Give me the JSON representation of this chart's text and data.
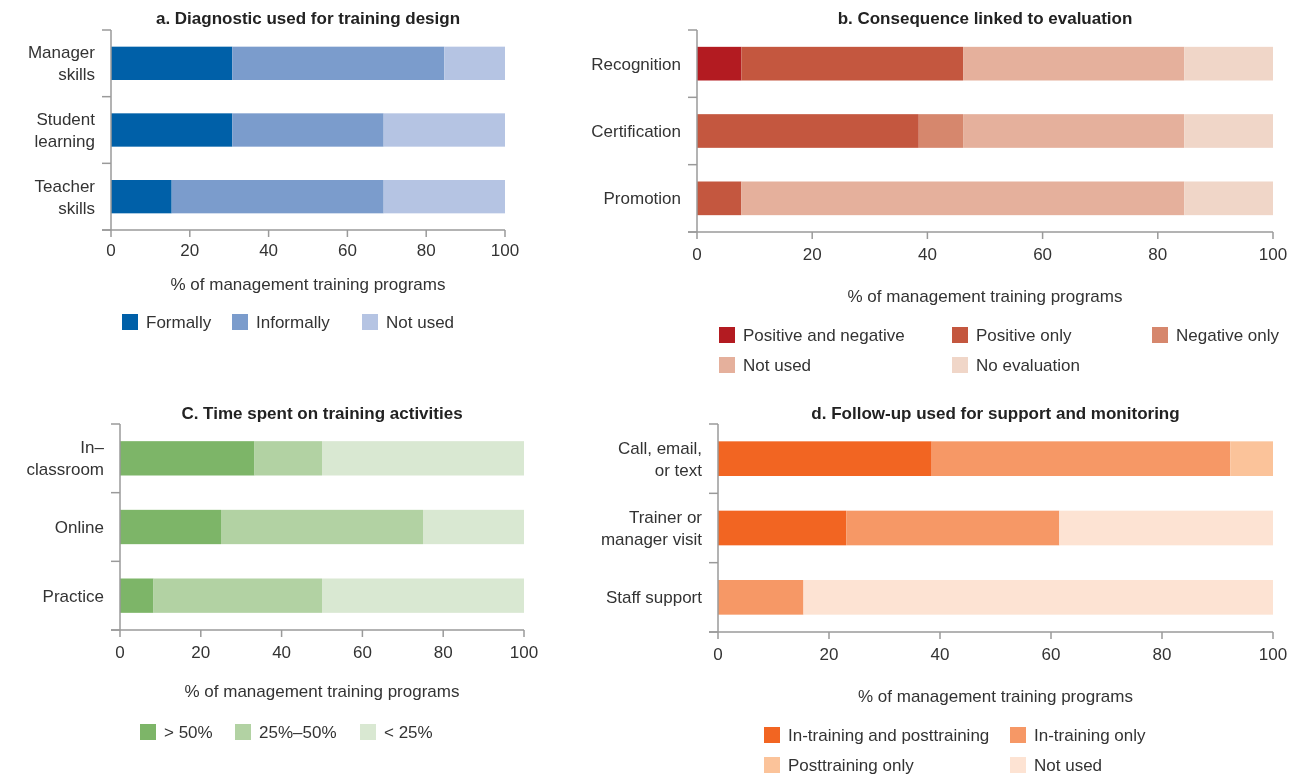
{
  "chart_data": [
    {
      "type": "bar",
      "orientation": "horizontal",
      "stacked": true,
      "title": "a. Diagnostic used for training design",
      "xlabel": "% of management training programs",
      "categories": [
        "Manager skills",
        "Student learning",
        "Teacher skills"
      ],
      "xlim": [
        0,
        100
      ],
      "xticks": [
        0,
        20,
        40,
        60,
        80,
        100
      ],
      "grid": false,
      "legend": "bottom",
      "series": [
        {
          "name": "Formally",
          "color": "#0060a8",
          "values": [
            30.8,
            30.8,
            15.4
          ]
        },
        {
          "name": "Informally",
          "color": "#7b9ccc",
          "values": [
            53.8,
            38.4,
            53.8
          ]
        },
        {
          "name": "Not used",
          "color": "#b5c4e3",
          "values": [
            15.4,
            30.8,
            30.8
          ]
        }
      ]
    },
    {
      "type": "bar",
      "orientation": "horizontal",
      "stacked": true,
      "title": "b. Consequence linked to evaluation",
      "xlabel": "% of management training programs",
      "categories": [
        "Recognition",
        "Certification",
        "Promotion"
      ],
      "xlim": [
        0,
        100
      ],
      "xticks": [
        0,
        20,
        40,
        60,
        80,
        100
      ],
      "grid": false,
      "legend": "bottom",
      "series": [
        {
          "name": "Positive and negative",
          "color": "#b31b21",
          "values": [
            7.7,
            0,
            0
          ]
        },
        {
          "name": "Positive only",
          "color": "#c4573f",
          "values": [
            38.5,
            38.5,
            7.7
          ]
        },
        {
          "name": "Negative only",
          "color": "#d6876d",
          "values": [
            0,
            7.7,
            0
          ]
        },
        {
          "name": "Not used",
          "color": "#e5b09c",
          "values": [
            38.4,
            38.4,
            76.9
          ]
        },
        {
          "name": "No evaluation",
          "color": "#f0d6c8",
          "values": [
            15.4,
            15.4,
            15.4
          ]
        }
      ]
    },
    {
      "type": "bar",
      "orientation": "horizontal",
      "stacked": true,
      "title": "C. Time spent on training activities",
      "xlabel": "% of management training programs",
      "categories": [
        "In–classroom",
        "Online",
        "Practice"
      ],
      "xlim": [
        0,
        100
      ],
      "xticks": [
        0,
        20,
        40,
        60,
        80,
        100
      ],
      "grid": false,
      "legend": "bottom",
      "series": [
        {
          "name": "> 50%",
          "color": "#7db568",
          "values": [
            33.3,
            25,
            8.3
          ]
        },
        {
          "name": "25%–50%",
          "color": "#b2d2a3",
          "values": [
            16.7,
            50,
            41.7
          ]
        },
        {
          "name": "< 25%",
          "color": "#d9e8d2",
          "values": [
            50,
            25,
            50
          ]
        }
      ]
    },
    {
      "type": "bar",
      "orientation": "horizontal",
      "stacked": true,
      "title": "d. Follow-up used for support and monitoring",
      "xlabel": "% of management training programs",
      "categories": [
        "Call, email, or text",
        "Trainer or manager visit",
        "Staff support"
      ],
      "xlim": [
        0,
        100
      ],
      "xticks": [
        0,
        20,
        40,
        60,
        80,
        100
      ],
      "grid": false,
      "legend": "bottom",
      "series": [
        {
          "name": "In-training and posttraining",
          "color": "#f26522",
          "values": [
            38.5,
            23.1,
            0
          ]
        },
        {
          "name": "In-training only",
          "color": "#f69866",
          "values": [
            53.8,
            38.4,
            15.4
          ]
        },
        {
          "name": "Posttraining only",
          "color": "#fbc39a",
          "values": [
            7.7,
            0,
            0
          ]
        },
        {
          "name": "Not used",
          "color": "#fde3d3",
          "values": [
            0,
            38.5,
            84.6
          ]
        }
      ]
    }
  ]
}
